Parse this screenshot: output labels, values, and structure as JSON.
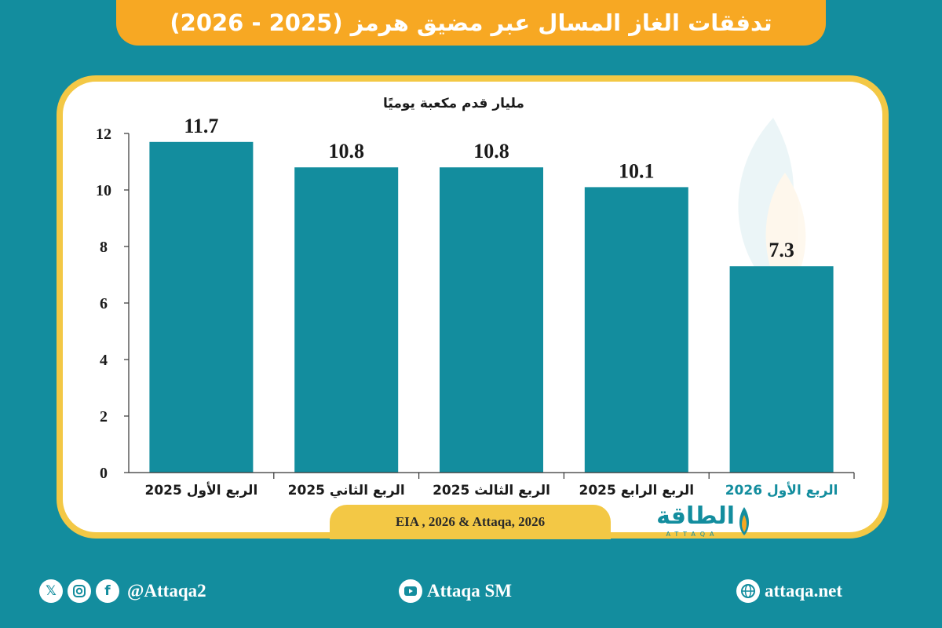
{
  "header": {
    "title": "تدفقات الغاز المسال عبر مضيق هرمز (2025 - 2026)"
  },
  "chart_data": {
    "type": "bar",
    "title": "",
    "ylabel": "مليار قدم مكعبة يوميًا",
    "xlabel": "",
    "categories": [
      "الربع الأول 2025",
      "الربع الثاني 2025",
      "الربع الثالث 2025",
      "الربع الرابع 2025",
      "الربع الأول 2026"
    ],
    "values": [
      11.7,
      10.8,
      10.8,
      10.1,
      7.3
    ],
    "value_labels": [
      "11.7",
      "10.8",
      "10.8",
      "10.1",
      "7.3"
    ],
    "yticks": [
      "0",
      "2",
      "4",
      "6",
      "8",
      "10",
      "12"
    ],
    "ylim": [
      0,
      12
    ],
    "bar_color": "#138d9e",
    "highlight_category_color": "#138d9e",
    "grid": false,
    "legend": "none"
  },
  "source": {
    "text": "EIA , 2026 & Attaqa, 2026"
  },
  "logo": {
    "text": "الطاقة",
    "subtitle": "ATTAQA"
  },
  "footer": {
    "social_handle": "@Attaqa2",
    "youtube": "Attaqa SM",
    "website": "attaqa.net",
    "icons": [
      "x-icon",
      "instagram-icon",
      "facebook-icon",
      "youtube-icon",
      "globe-icon"
    ]
  },
  "colors": {
    "background": "#138d9e",
    "banner": "#f7a823",
    "card_border": "#f3c845"
  }
}
